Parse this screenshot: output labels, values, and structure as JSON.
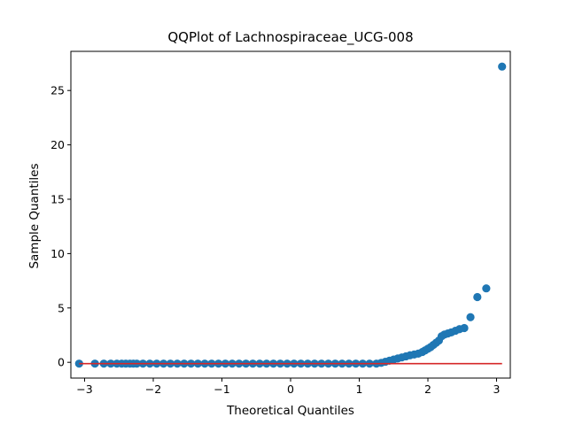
{
  "chart_data": {
    "type": "scatter",
    "title": "QQPlot of Lachnospiraceae_UCG-008",
    "xlabel": "Theoretical Quantiles",
    "ylabel": "Sample Quantiles",
    "xlim": [
      -3.2,
      3.2
    ],
    "ylim": [
      -1.45,
      28.6
    ],
    "xticks": [
      -3,
      -2,
      -1,
      0,
      1,
      2,
      3
    ],
    "xtick_labels": [
      "−3",
      "−2",
      "−1",
      "0",
      "1",
      "2",
      "3"
    ],
    "yticks": [
      0,
      5,
      10,
      15,
      20,
      25
    ],
    "ytick_labels": [
      "0",
      "5",
      "10",
      "15",
      "20",
      "25"
    ],
    "grid": false,
    "marker_color": "#1f77b4",
    "line_color": "#d62728",
    "reference_line": {
      "x": [
        -3.08,
        3.08
      ],
      "y": [
        -0.12,
        -0.12
      ]
    },
    "points": {
      "x": [
        -3.08,
        -2.85,
        -2.72,
        -2.62,
        -2.53,
        -2.46,
        -2.4,
        -2.34,
        -2.29,
        -2.24,
        -2.15,
        -2.05,
        -1.95,
        -1.85,
        -1.75,
        -1.65,
        -1.55,
        -1.45,
        -1.35,
        -1.25,
        -1.15,
        -1.05,
        -0.95,
        -0.85,
        -0.75,
        -0.65,
        -0.55,
        -0.45,
        -0.35,
        -0.25,
        -0.15,
        -0.05,
        0.05,
        0.15,
        0.25,
        0.35,
        0.45,
        0.55,
        0.65,
        0.75,
        0.85,
        0.95,
        1.05,
        1.15,
        1.25,
        1.32,
        1.38,
        1.44,
        1.5,
        1.56,
        1.62,
        1.68,
        1.74,
        1.8,
        1.86,
        1.92,
        1.96,
        2.0,
        2.04,
        2.08,
        2.12,
        2.16,
        2.2,
        2.24,
        2.29,
        2.34,
        2.4,
        2.46,
        2.53,
        2.62,
        2.72,
        2.85,
        3.08
      ],
      "y": [
        -0.12,
        -0.12,
        -0.12,
        -0.12,
        -0.12,
        -0.12,
        -0.12,
        -0.12,
        -0.12,
        -0.12,
        -0.12,
        -0.12,
        -0.12,
        -0.12,
        -0.12,
        -0.12,
        -0.12,
        -0.12,
        -0.12,
        -0.12,
        -0.12,
        -0.12,
        -0.12,
        -0.12,
        -0.12,
        -0.12,
        -0.12,
        -0.12,
        -0.12,
        -0.12,
        -0.12,
        -0.12,
        -0.12,
        -0.12,
        -0.12,
        -0.12,
        -0.12,
        -0.12,
        -0.12,
        -0.12,
        -0.12,
        -0.12,
        -0.12,
        -0.12,
        -0.12,
        -0.05,
        0.05,
        0.15,
        0.25,
        0.35,
        0.45,
        0.55,
        0.65,
        0.72,
        0.8,
        0.95,
        1.1,
        1.25,
        1.4,
        1.6,
        1.8,
        2.0,
        2.4,
        2.55,
        2.65,
        2.75,
        2.9,
        3.05,
        3.15,
        4.15,
        6.0,
        6.8,
        27.2
      ]
    }
  }
}
